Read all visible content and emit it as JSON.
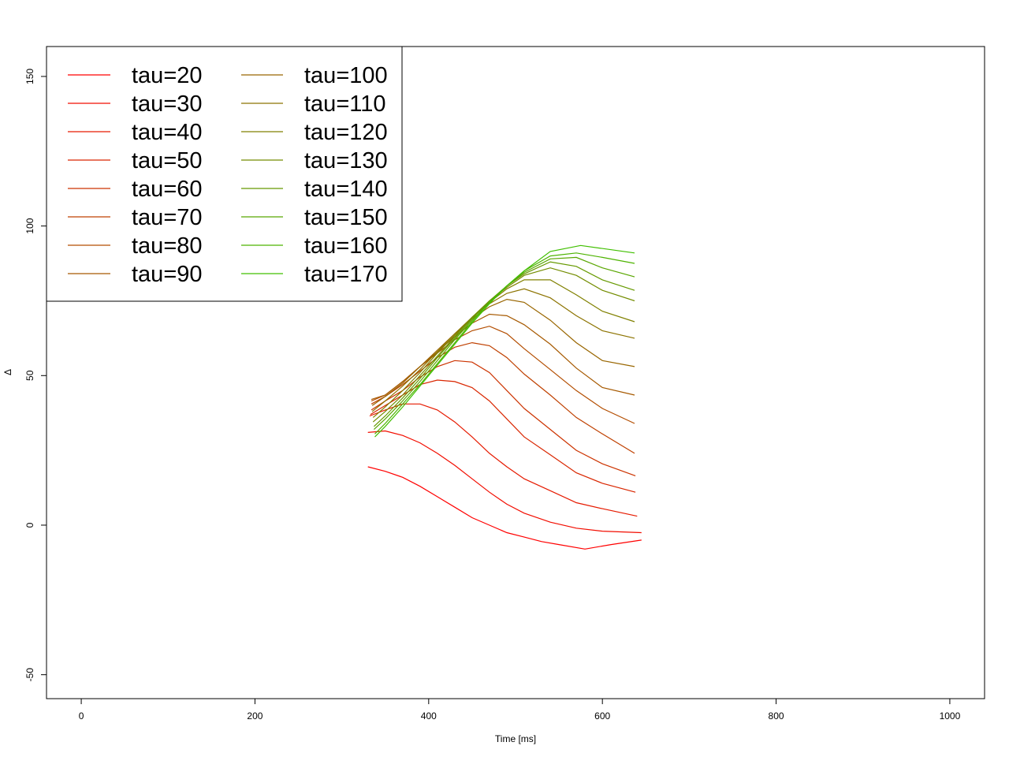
{
  "chart_data": {
    "type": "line",
    "xlabel": "Time [ms]",
    "ylabel": "Δ",
    "xlim": [
      -40,
      1040
    ],
    "ylim": [
      -58,
      160
    ],
    "x_ticks": [
      0,
      200,
      400,
      600,
      800,
      1000
    ],
    "y_ticks": [
      -50,
      0,
      50,
      100,
      150
    ],
    "legend_position": "top-left",
    "legend_columns": 2,
    "grid": false,
    "series": [
      {
        "name": "tau=20",
        "color": "#ff0000",
        "x": [
          330,
          350,
          370,
          390,
          410,
          430,
          450,
          470,
          490,
          510,
          530,
          550,
          580,
          610,
          645
        ],
        "y": [
          19.5,
          18,
          16,
          13,
          9.5,
          6,
          2.5,
          0,
          -2.5,
          -4,
          -5.5,
          -6.5,
          -8,
          -6.5,
          -5
        ]
      },
      {
        "name": "tau=30",
        "color": "#f20d00",
        "x": [
          330,
          350,
          370,
          390,
          410,
          430,
          450,
          470,
          490,
          510,
          540,
          570,
          600,
          645
        ],
        "y": [
          31,
          31.5,
          30,
          27.5,
          24,
          20,
          15.5,
          11,
          7,
          4,
          1,
          -1,
          -2,
          -2.5
        ]
      },
      {
        "name": "tau=40",
        "color": "#e61a00",
        "x": [
          332,
          350,
          370,
          390,
          410,
          430,
          450,
          470,
          490,
          510,
          540,
          570,
          600,
          640
        ],
        "y": [
          36.5,
          38.5,
          40.5,
          40.5,
          38.5,
          34.5,
          29.5,
          24,
          19.5,
          15.5,
          11.5,
          7.5,
          5.5,
          3
        ]
      },
      {
        "name": "tau=50",
        "color": "#d92600",
        "x": [
          333,
          350,
          370,
          390,
          410,
          430,
          450,
          470,
          490,
          510,
          540,
          570,
          600,
          638
        ],
        "y": [
          37,
          40,
          43.5,
          47,
          48.5,
          48,
          46,
          41.5,
          35.5,
          29.5,
          23.5,
          17.5,
          14,
          11
        ]
      },
      {
        "name": "tau=60",
        "color": "#cc3300",
        "x": [
          334,
          350,
          370,
          390,
          410,
          430,
          450,
          470,
          490,
          510,
          540,
          570,
          600,
          638
        ],
        "y": [
          38.5,
          41.5,
          45,
          49.5,
          53,
          55,
          54.5,
          51,
          45,
          39,
          32,
          25,
          20.5,
          16.5
        ]
      },
      {
        "name": "tau=70",
        "color": "#bf4000",
        "x": [
          334,
          350,
          370,
          390,
          410,
          430,
          450,
          470,
          490,
          510,
          540,
          570,
          600,
          637
        ],
        "y": [
          40.5,
          43,
          47,
          51.5,
          56,
          59.5,
          61,
          60,
          56,
          50.5,
          43.5,
          36,
          30.5,
          24
        ]
      },
      {
        "name": "tau=80",
        "color": "#b34d00",
        "x": [
          334,
          350,
          370,
          390,
          410,
          430,
          450,
          470,
          490,
          510,
          540,
          570,
          600,
          637
        ],
        "y": [
          41.5,
          43.5,
          48,
          53,
          57.5,
          62,
          65,
          66.5,
          64,
          59,
          52,
          45,
          39,
          34
        ]
      },
      {
        "name": "tau=90",
        "color": "#a65900",
        "x": [
          334,
          350,
          370,
          390,
          410,
          430,
          450,
          470,
          490,
          510,
          540,
          570,
          600,
          637
        ],
        "y": [
          42,
          43.5,
          48,
          53,
          58,
          63,
          67.5,
          70.5,
          70,
          67,
          60.5,
          52.5,
          46,
          43.5
        ]
      },
      {
        "name": "tau=100",
        "color": "#996600",
        "x": [
          335,
          350,
          370,
          390,
          410,
          430,
          450,
          470,
          490,
          510,
          540,
          570,
          600,
          637
        ],
        "y": [
          40,
          43,
          47.5,
          53,
          58.5,
          64,
          69,
          73,
          75.5,
          74.5,
          68.5,
          61,
          55,
          53
        ]
      },
      {
        "name": "tau=110",
        "color": "#8c7300",
        "x": [
          335,
          350,
          370,
          390,
          410,
          430,
          450,
          470,
          490,
          510,
          540,
          570,
          600,
          637
        ],
        "y": [
          38,
          41.5,
          46.5,
          52,
          58,
          64,
          69.5,
          74,
          77.5,
          79,
          76,
          70,
          65,
          62.5
        ]
      },
      {
        "name": "tau=120",
        "color": "#808000",
        "x": [
          336,
          350,
          370,
          390,
          410,
          430,
          450,
          470,
          490,
          510,
          540,
          570,
          600,
          637
        ],
        "y": [
          36,
          39.5,
          45,
          51,
          57.5,
          63.5,
          69.5,
          74.5,
          79,
          82,
          82,
          77,
          71.5,
          68
        ]
      },
      {
        "name": "tau=130",
        "color": "#738c00",
        "x": [
          336,
          350,
          370,
          390,
          410,
          430,
          450,
          470,
          490,
          510,
          540,
          570,
          600,
          637
        ],
        "y": [
          34.5,
          38,
          43.5,
          50,
          56.5,
          63,
          69.5,
          75,
          79.5,
          83.5,
          86,
          83.5,
          78.5,
          75
        ]
      },
      {
        "name": "tau=140",
        "color": "#669900",
        "x": [
          337,
          350,
          370,
          390,
          410,
          430,
          450,
          470,
          490,
          510,
          540,
          570,
          600,
          637
        ],
        "y": [
          33,
          36.5,
          42.5,
          49,
          56,
          62.5,
          69,
          75,
          80,
          84,
          88,
          86.5,
          82,
          78.5
        ]
      },
      {
        "name": "tau=150",
        "color": "#59a600",
        "x": [
          337,
          350,
          370,
          390,
          410,
          430,
          450,
          470,
          490,
          510,
          540,
          570,
          600,
          637
        ],
        "y": [
          32,
          35.5,
          41.5,
          48,
          55,
          62,
          68.5,
          74.5,
          80,
          84.5,
          89,
          89.5,
          86,
          83
        ]
      },
      {
        "name": "tau=160",
        "color": "#4db300",
        "x": [
          338,
          350,
          370,
          390,
          410,
          430,
          450,
          470,
          490,
          510,
          540,
          570,
          600,
          637
        ],
        "y": [
          30.5,
          34,
          40.5,
          47,
          54,
          61,
          68,
          74.5,
          80,
          85,
          90,
          91,
          89.5,
          87.5
        ]
      },
      {
        "name": "tau=170",
        "color": "#40bf00",
        "x": [
          338,
          350,
          370,
          390,
          410,
          430,
          450,
          470,
          490,
          510,
          540,
          575,
          637
        ],
        "y": [
          29.5,
          33,
          39.5,
          46.5,
          53.5,
          60.5,
          67.5,
          74,
          80,
          85,
          91.5,
          93.5,
          91
        ]
      }
    ]
  },
  "legend": {
    "col1": [
      "tau=20",
      "tau=30",
      "tau=40",
      "tau=50",
      "tau=60",
      "tau=70",
      "tau=80",
      "tau=90"
    ],
    "col2": [
      "tau=100",
      "tau=110",
      "tau=120",
      "tau=130",
      "tau=140",
      "tau=150",
      "tau=160",
      "tau=170"
    ],
    "colors1": [
      "#ff0000",
      "#f20d00",
      "#e61a00",
      "#d92600",
      "#cc3300",
      "#bf4000",
      "#b34d00",
      "#a65900"
    ],
    "colors2": [
      "#996600",
      "#8c7300",
      "#808000",
      "#738c00",
      "#669900",
      "#59a600",
      "#4db300",
      "#40bf00"
    ]
  }
}
